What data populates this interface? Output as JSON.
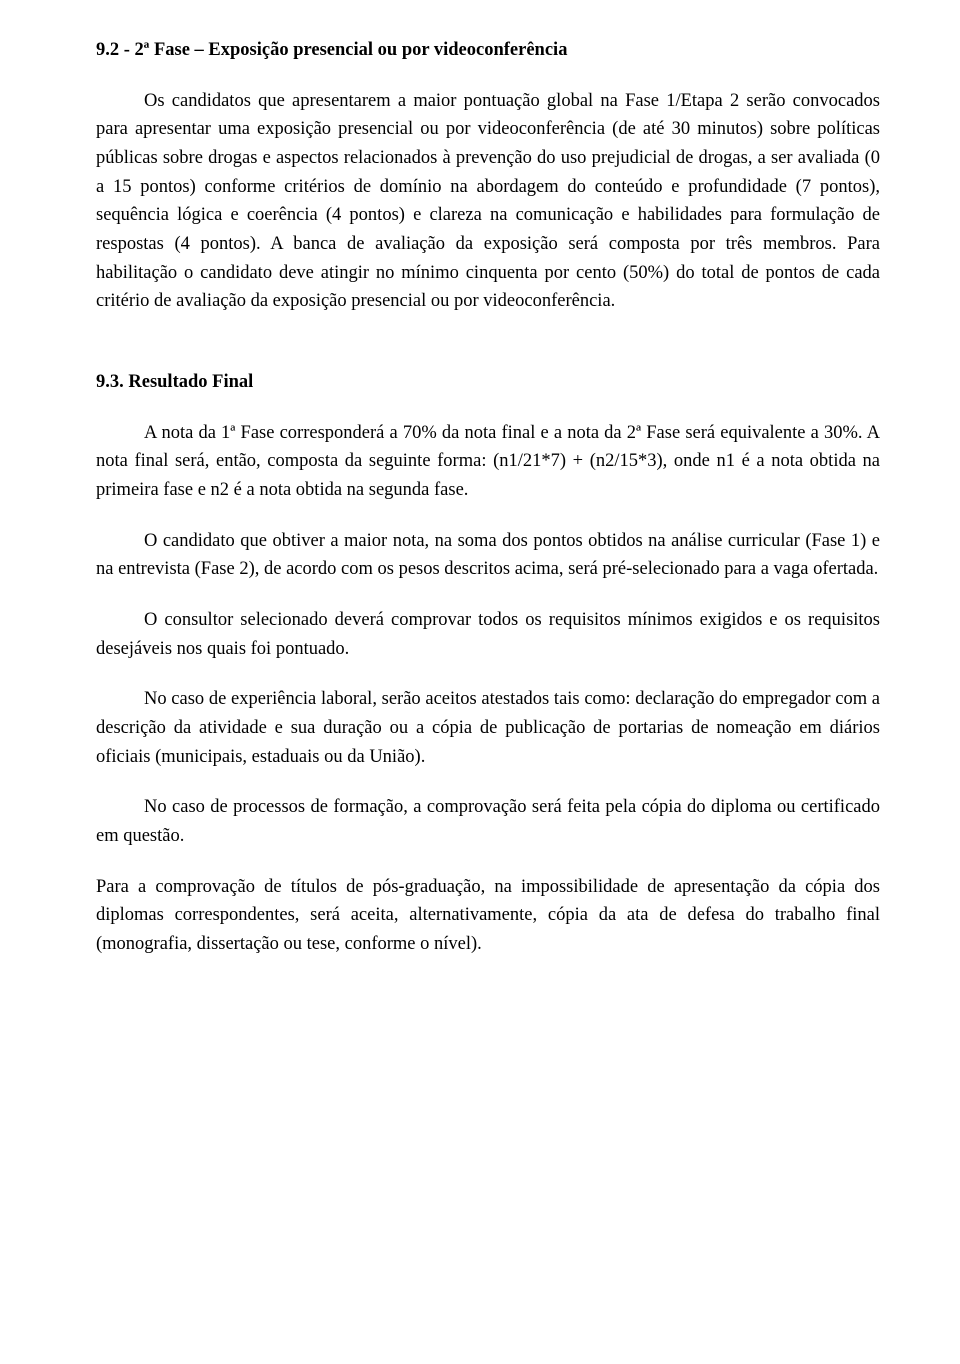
{
  "section92": {
    "heading": "9.2 - 2ª Fase – Exposição presencial ou por videoconferência",
    "para1": "Os candidatos que apresentarem a maior pontuação global na Fase 1/Etapa 2 serão convocados para apresentar uma exposição presencial ou por videoconferência (de até 30 minutos) sobre políticas públicas sobre drogas e aspectos relacionados à prevenção do uso prejudicial de drogas, a ser avaliada (0 a 15 pontos) conforme critérios de domínio na abordagem do conteúdo e profundidade (7 pontos), sequência lógica e coerência (4 pontos) e clareza na comunicação e habilidades para formulação de respostas (4 pontos). A banca de avaliação da exposição será composta por três membros. Para habilitação o candidato deve atingir no mínimo cinquenta por cento (50%) do total de pontos de cada critério de avaliação da exposição presencial ou por videoconferência."
  },
  "section93": {
    "heading": "9.3. Resultado Final",
    "para1": "A nota da 1ª Fase corresponderá a 70% da nota final e a nota da 2ª Fase será equivalente a 30%. A nota final será, então, composta da seguinte forma: (n1/21*7) + (n2/15*3), onde n1 é a nota obtida na primeira fase e n2 é a nota obtida na segunda fase.",
    "para2": "O candidato que obtiver a maior nota, na soma dos pontos obtidos na análise curricular (Fase 1) e na entrevista (Fase 2), de acordo com os pesos descritos acima, será pré-selecionado para a vaga ofertada.",
    "para3": "O consultor selecionado deverá comprovar todos os requisitos mínimos exigidos e os requisitos desejáveis nos quais foi pontuado.",
    "para4": "No caso de experiência laboral, serão aceitos atestados tais como: declaração do empregador com a descrição da atividade e sua duração ou a cópia de publicação de portarias de nomeação em diários oficiais (municipais, estaduais ou da União).",
    "para5": "No caso de processos de formação, a comprovação será feita pela cópia do diploma ou certificado em questão.",
    "para6": "Para a comprovação de títulos de pós-graduação, na impossibilidade de apresentação da cópia dos diplomas correspondentes, será aceita, alternativamente, cópia da ata de defesa do trabalho final (monografia, dissertação ou tese, conforme o nível)."
  }
}
